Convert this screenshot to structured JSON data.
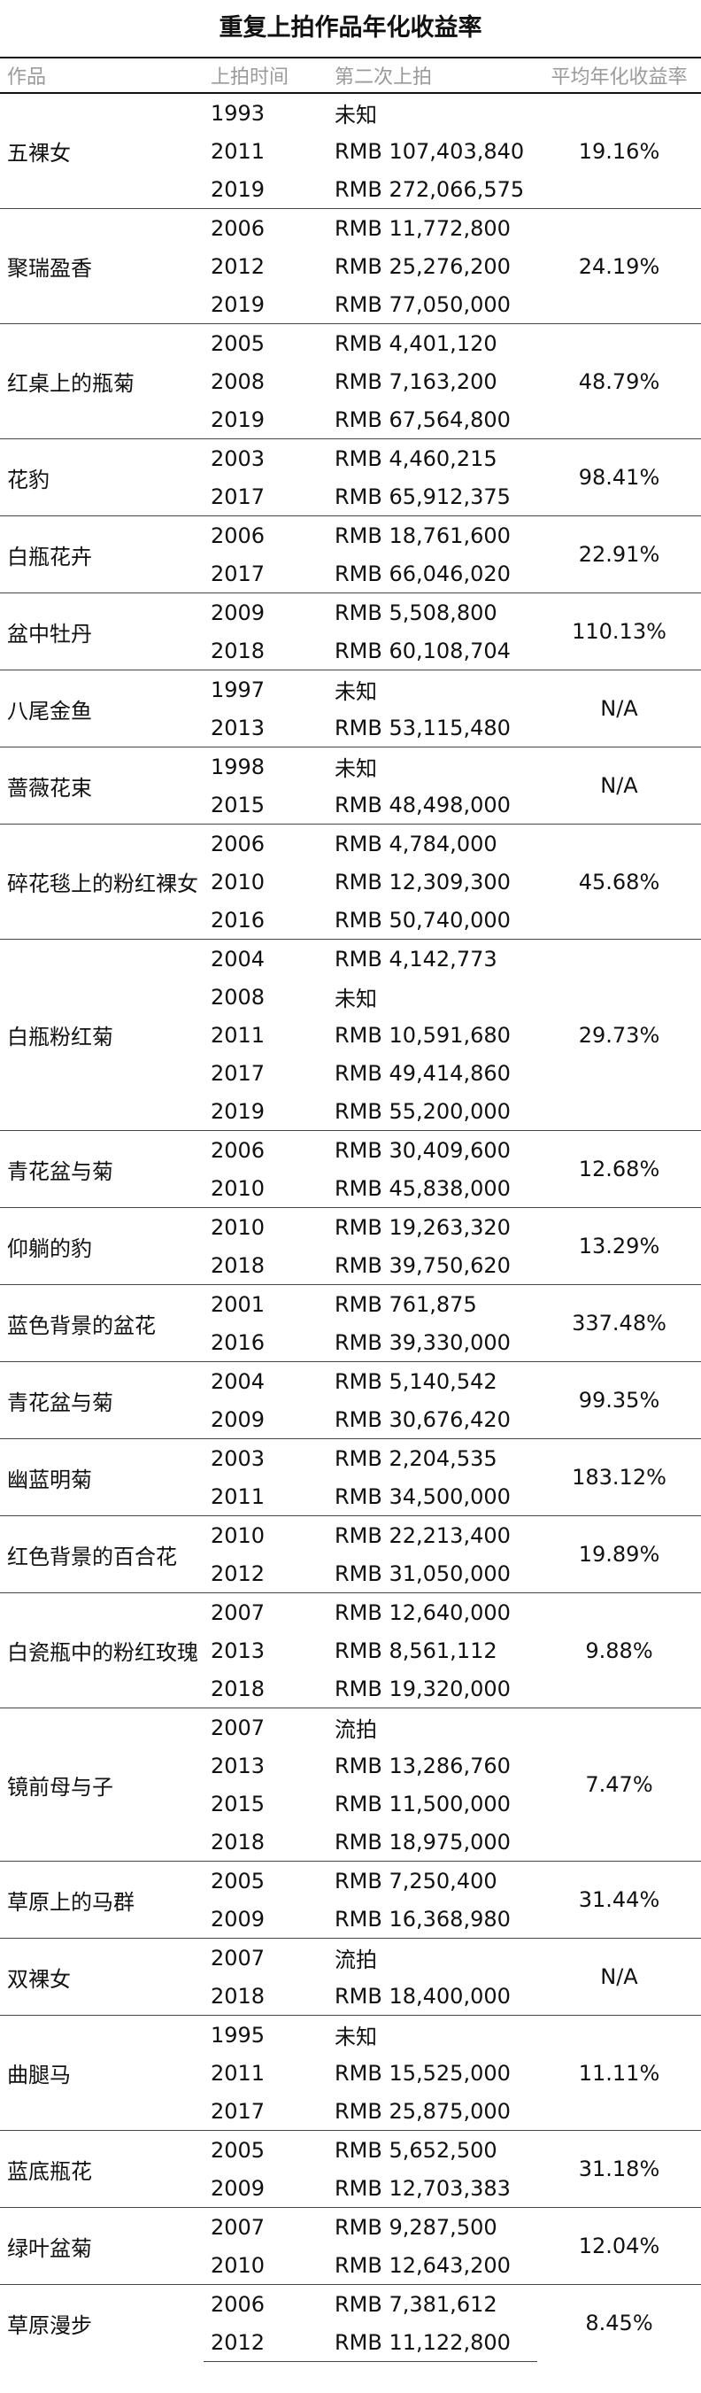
{
  "title": "重复上拍作品年化收益率",
  "headers": [
    "作品",
    "上拍时间",
    "第二次上拍",
    "平均年化收益率"
  ],
  "groups": [
    {
      "work": "五裸女",
      "rate": "19.16%",
      "rows": [
        {
          "year": "1993",
          "price": "未知"
        },
        {
          "year": "2011",
          "price": "RMB 107,403,840"
        },
        {
          "year": "2019",
          "price": "RMB 272,066,575"
        }
      ]
    },
    {
      "work": "聚瑞盈香",
      "rate": "24.19%",
      "rows": [
        {
          "year": "2006",
          "price": "RMB 11,772,800"
        },
        {
          "year": "2012",
          "price": "RMB 25,276,200"
        },
        {
          "year": "2019",
          "price": "RMB 77,050,000"
        }
      ]
    },
    {
      "work": "红桌上的瓶菊",
      "rate": "48.79%",
      "rows": [
        {
          "year": "2005",
          "price": "RMB 4,401,120"
        },
        {
          "year": "2008",
          "price": "RMB 7,163,200"
        },
        {
          "year": "2019",
          "price": "RMB 67,564,800"
        }
      ]
    },
    {
      "work": "花豹",
      "rate": "98.41%",
      "rows": [
        {
          "year": "2003",
          "price": "RMB 4,460,215"
        },
        {
          "year": "2017",
          "price": "RMB 65,912,375"
        }
      ]
    },
    {
      "work": "白瓶花卉",
      "rate": "22.91%",
      "rows": [
        {
          "year": "2006",
          "price": "RMB 18,761,600"
        },
        {
          "year": "2017",
          "price": "RMB 66,046,020"
        }
      ]
    },
    {
      "work": "盆中牡丹",
      "rate": "110.13%",
      "rows": [
        {
          "year": "2009",
          "price": "RMB 5,508,800"
        },
        {
          "year": "2018",
          "price": "RMB 60,108,704"
        }
      ]
    },
    {
      "work": "八尾金鱼",
      "rate": "N/A",
      "rows": [
        {
          "year": "1997",
          "price": "未知"
        },
        {
          "year": "2013",
          "price": "RMB 53,115,480"
        }
      ]
    },
    {
      "work": "蔷薇花束",
      "rate": "N/A",
      "rows": [
        {
          "year": "1998",
          "price": "未知"
        },
        {
          "year": "2015",
          "price": "RMB 48,498,000"
        }
      ]
    },
    {
      "work": "碎花毯上的粉红裸女",
      "rate": "45.68%",
      "rows": [
        {
          "year": "2006",
          "price": "RMB 4,784,000"
        },
        {
          "year": "2010",
          "price": "RMB 12,309,300"
        },
        {
          "year": "2016",
          "price": "RMB 50,740,000"
        }
      ]
    },
    {
      "work": "白瓶粉红菊",
      "rate": "29.73%",
      "rows": [
        {
          "year": "2004",
          "price": "RMB 4,142,773"
        },
        {
          "year": "2008",
          "price": "未知"
        },
        {
          "year": "2011",
          "price": "RMB 10,591,680"
        },
        {
          "year": "2017",
          "price": "RMB 49,414,860"
        },
        {
          "year": "2019",
          "price": "RMB 55,200,000"
        }
      ]
    },
    {
      "work": "青花盆与菊",
      "rate": "12.68%",
      "rows": [
        {
          "year": "2006",
          "price": "RMB 30,409,600"
        },
        {
          "year": "2010",
          "price": "RMB 45,838,000"
        }
      ]
    },
    {
      "work": "仰躺的豹",
      "rate": "13.29%",
      "rows": [
        {
          "year": "2010",
          "price": "RMB 19,263,320"
        },
        {
          "year": "2018",
          "price": "RMB 39,750,620"
        }
      ]
    },
    {
      "work": "蓝色背景的盆花",
      "rate": "337.48%",
      "rows": [
        {
          "year": "2001",
          "price": "RMB 761,875"
        },
        {
          "year": "2016",
          "price": "RMB 39,330,000"
        }
      ]
    },
    {
      "work": "青花盆与菊",
      "rate": "99.35%",
      "rows": [
        {
          "year": "2004",
          "price": "RMB 5,140,542"
        },
        {
          "year": "2009",
          "price": "RMB 30,676,420"
        }
      ]
    },
    {
      "work": "幽蓝明菊",
      "rate": "183.12%",
      "rows": [
        {
          "year": "2003",
          "price": "RMB 2,204,535"
        },
        {
          "year": "2011",
          "price": "RMB 34,500,000"
        }
      ]
    },
    {
      "work": "红色背景的百合花",
      "rate": "19.89%",
      "rows": [
        {
          "year": "2010",
          "price": "RMB 22,213,400"
        },
        {
          "year": "2012",
          "price": "RMB 31,050,000"
        }
      ]
    },
    {
      "work": "白瓷瓶中的粉红玫瑰",
      "rate": "9.88%",
      "rows": [
        {
          "year": "2007",
          "price": "RMB 12,640,000"
        },
        {
          "year": "2013",
          "price": "RMB 8,561,112"
        },
        {
          "year": "2018",
          "price": "RMB 19,320,000"
        }
      ]
    },
    {
      "work": "镜前母与子",
      "rate": "7.47%",
      "rows": [
        {
          "year": "2007",
          "price": "流拍"
        },
        {
          "year": "2013",
          "price": "RMB 13,286,760"
        },
        {
          "year": "2015",
          "price": "RMB 11,500,000"
        },
        {
          "year": "2018",
          "price": "RMB 18,975,000"
        }
      ]
    },
    {
      "work": "草原上的马群",
      "rate": "31.44%",
      "rows": [
        {
          "year": "2005",
          "price": "RMB 7,250,400"
        },
        {
          "year": "2009",
          "price": "RMB 16,368,980"
        }
      ]
    },
    {
      "work": "双裸女",
      "rate": "N/A",
      "rows": [
        {
          "year": "2007",
          "price": "流拍"
        },
        {
          "year": "2018",
          "price": "RMB 18,400,000"
        }
      ]
    },
    {
      "work": "曲腿马",
      "rate": "11.11%",
      "rows": [
        {
          "year": "1995",
          "price": "未知"
        },
        {
          "year": "2011",
          "price": "RMB 15,525,000"
        },
        {
          "year": "2017",
          "price": "RMB 25,875,000"
        }
      ]
    },
    {
      "work": "蓝底瓶花",
      "rate": "31.18%",
      "rows": [
        {
          "year": "2005",
          "price": "RMB 5,652,500"
        },
        {
          "year": "2009",
          "price": "RMB 12,703,383"
        }
      ]
    },
    {
      "work": "绿叶盆菊",
      "rate": "12.04%",
      "rows": [
        {
          "year": "2007",
          "price": "RMB 9,287,500"
        },
        {
          "year": "2010",
          "price": "RMB 12,643,200"
        }
      ]
    },
    {
      "work": "草原漫步",
      "rate": "8.45%",
      "rows": [
        {
          "year": "2006",
          "price": "RMB 7,381,612"
        },
        {
          "year": "2012",
          "price": "RMB 11,122,800"
        }
      ]
    }
  ]
}
